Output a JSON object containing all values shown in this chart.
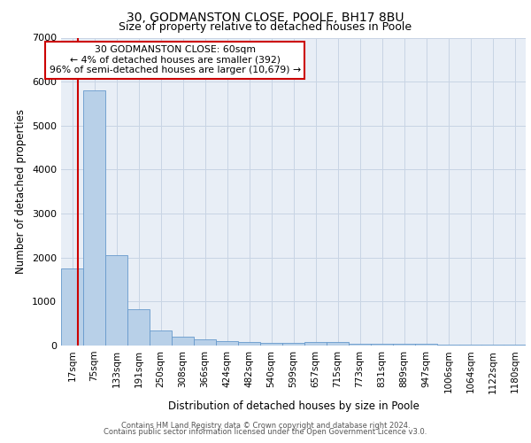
{
  "title1": "30, GODMANSTON CLOSE, POOLE, BH17 8BU",
  "title2": "Size of property relative to detached houses in Poole",
  "xlabel": "Distribution of detached houses by size in Poole",
  "ylabel": "Number of detached properties",
  "bin_labels": [
    "17sqm",
    "75sqm",
    "133sqm",
    "191sqm",
    "250sqm",
    "308sqm",
    "366sqm",
    "424sqm",
    "482sqm",
    "540sqm",
    "599sqm",
    "657sqm",
    "715sqm",
    "773sqm",
    "831sqm",
    "889sqm",
    "947sqm",
    "1006sqm",
    "1064sqm",
    "1122sqm",
    "1180sqm"
  ],
  "bar_values": [
    1760,
    5800,
    2050,
    830,
    340,
    200,
    150,
    100,
    80,
    60,
    55,
    80,
    80,
    50,
    45,
    40,
    35,
    30,
    25,
    20,
    15
  ],
  "bar_color": "#b8d0e8",
  "bar_edge_color": "#6699cc",
  "grid_color": "#c8d4e4",
  "bg_color": "#e8eef6",
  "annotation_text": "30 GODMANSTON CLOSE: 60sqm\n← 4% of detached houses are smaller (392)\n96% of semi-detached houses are larger (10,679) →",
  "annotation_box_color": "#ffffff",
  "annotation_border_color": "#cc0000",
  "ylim": [
    0,
    7000
  ],
  "yticks": [
    0,
    1000,
    2000,
    3000,
    4000,
    5000,
    6000,
    7000
  ],
  "footer1": "Contains HM Land Registry data © Crown copyright and database right 2024.",
  "footer2": "Contains public sector information licensed under the Open Government Licence v3.0."
}
